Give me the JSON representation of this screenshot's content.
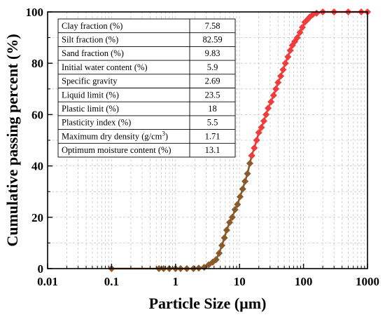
{
  "chart_data": {
    "type": "line",
    "xlabel": "Particle Size (µm)",
    "ylabel": "Cumulative passing percent (%)",
    "xscale": "log",
    "xlim": [
      0.01,
      1000
    ],
    "ylim": [
      0,
      100
    ],
    "xticks": [
      "0.01",
      "0.1",
      "1",
      "10",
      "100",
      "1000"
    ],
    "yticks": [
      "0",
      "20",
      "40",
      "60",
      "80",
      "100"
    ],
    "grid": true,
    "series": [
      {
        "color": "#8B5A2B",
        "marker": "diamond",
        "x": [
          0.1,
          0.55,
          0.65,
          0.8,
          1.0,
          1.2,
          1.5,
          1.9,
          2.3,
          2.8,
          3.3,
          3.8,
          4.3,
          4.8,
          5.3,
          5.8,
          6.3,
          7.0,
          7.7,
          8.5,
          9.3,
          10.2,
          11.2,
          12.2,
          13.3,
          14.5,
          15.5
        ],
        "y": [
          0,
          0,
          0,
          0,
          0,
          0,
          0,
          0,
          0.2,
          0.5,
          1.5,
          2.5,
          3.5,
          6,
          9,
          12,
          15,
          18,
          20,
          23,
          25,
          28,
          31,
          34,
          37,
          41,
          44
        ]
      },
      {
        "color": "#F03C3C",
        "marker": "diamond",
        "x": [
          15.5,
          17,
          18.5,
          20,
          22,
          24,
          26,
          28,
          31,
          34,
          37,
          40,
          44,
          48,
          52,
          57,
          62,
          67,
          73,
          80,
          88,
          96,
          105,
          115,
          125,
          140,
          160,
          200,
          300,
          500,
          800,
          1000
        ],
        "y": [
          44,
          47,
          50,
          53,
          55,
          57.5,
          60,
          62.5,
          65,
          67.5,
          70,
          72.5,
          75,
          77.5,
          80,
          82.5,
          85,
          87,
          88.5,
          90,
          92,
          94,
          96,
          97,
          98,
          99,
          99.5,
          100,
          100,
          100,
          100,
          100
        ]
      }
    ]
  },
  "properties_table": {
    "rows": [
      {
        "label": "Clay fraction (%)",
        "value": "7.58"
      },
      {
        "label": "Silt fraction (%)",
        "value": "82.59"
      },
      {
        "label": "Sand fraction (%)",
        "value": "9.83"
      },
      {
        "label": "Initial water content (%)",
        "value": "5.9"
      },
      {
        "label": "Specific gravity",
        "value": "2.69"
      },
      {
        "label": "Liquid limit (%)",
        "value": "23.5"
      },
      {
        "label": "Plastic limit (%)",
        "value": "18"
      },
      {
        "label": "Plasticity index (%)",
        "value": "5.5"
      },
      {
        "label": "Maximum dry density (g/cm",
        "sup": "3",
        "after": ")",
        "value": "1.71"
      },
      {
        "label": "Optimum moisture content (%)",
        "value": "13.1"
      }
    ]
  }
}
